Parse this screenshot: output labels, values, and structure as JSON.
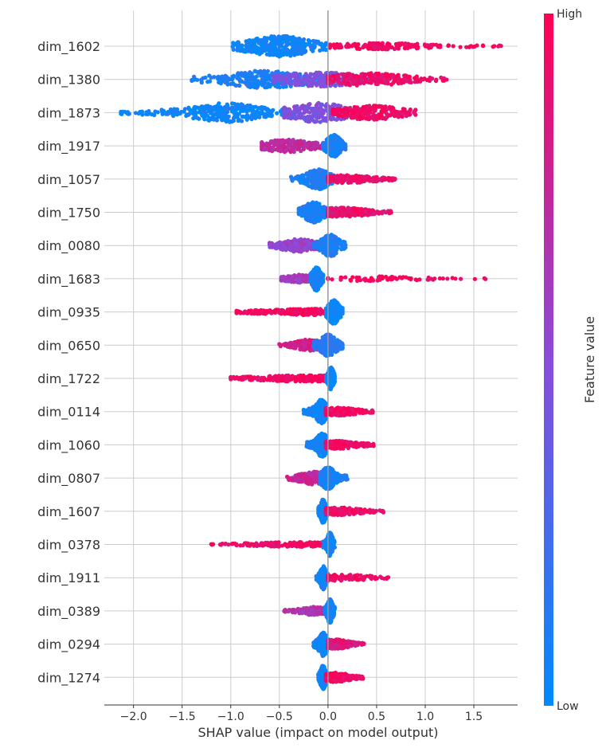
{
  "chart_data": {
    "type": "scatter",
    "subtype": "shap-beeswarm",
    "xlabel": "SHAP value (impact on model output)",
    "xlim": [
      -2.3,
      1.95
    ],
    "xticks": [
      -2.0,
      -1.5,
      -1.0,
      -0.5,
      0.0,
      0.5,
      1.0,
      1.5
    ],
    "xtick_labels": [
      "−2.0",
      "−1.5",
      "−1.0",
      "−0.5",
      "0.0",
      "0.5",
      "1.0",
      "1.5"
    ],
    "grid": true,
    "zero_line": true,
    "color_low": "#008bfb",
    "color_mid": "#8a4cdb",
    "color_high": "#ff0052",
    "colorbar": {
      "title": "Feature value",
      "high_label": "High",
      "low_label": "Low"
    },
    "features": [
      {
        "name": "dim_1602",
        "segments": [
          {
            "min": -0.98,
            "max": -0.02,
            "peak": -0.5,
            "width": 0.22,
            "color": 0.05,
            "n": 380,
            "spread": 13
          },
          {
            "min": 0.02,
            "max": 1.78,
            "peak": 0.55,
            "width": 0.35,
            "color": 0.95,
            "n": 190,
            "spread": 4
          }
        ]
      },
      {
        "name": "dim_1380",
        "segments": [
          {
            "min": -1.4,
            "max": -0.05,
            "peak": -0.65,
            "width": 0.3,
            "color": 0.1,
            "n": 320,
            "spread": 11
          },
          {
            "min": -0.55,
            "max": 0.5,
            "peak": -0.1,
            "width": 0.3,
            "color": 0.45,
            "n": 240,
            "spread": 9
          },
          {
            "min": 0.0,
            "max": 1.22,
            "peak": 0.4,
            "width": 0.3,
            "color": 0.92,
            "n": 220,
            "spread": 8
          }
        ]
      },
      {
        "name": "dim_1873",
        "segments": [
          {
            "min": -2.13,
            "max": -0.35,
            "peak": -1.05,
            "width": 0.25,
            "color": 0.05,
            "n": 340,
            "spread": 12
          },
          {
            "min": -0.45,
            "max": 0.35,
            "peak": -0.1,
            "width": 0.22,
            "color": 0.45,
            "n": 240,
            "spread": 12
          },
          {
            "min": 0.05,
            "max": 0.9,
            "peak": 0.45,
            "width": 0.22,
            "color": 0.93,
            "n": 220,
            "spread": 9
          }
        ]
      },
      {
        "name": "dim_1917",
        "segments": [
          {
            "min": -0.68,
            "max": -0.05,
            "peak": -0.42,
            "width": 0.18,
            "color": 0.72,
            "n": 220,
            "spread": 8
          },
          {
            "min": -0.05,
            "max": 0.18,
            "peak": 0.06,
            "width": 0.05,
            "color": 0.08,
            "n": 210,
            "spread": 14
          }
        ]
      },
      {
        "name": "dim_1057",
        "segments": [
          {
            "min": -0.38,
            "max": 0.08,
            "peak": -0.1,
            "width": 0.08,
            "color": 0.1,
            "n": 260,
            "spread": 13
          },
          {
            "min": 0.0,
            "max": 0.69,
            "peak": 0.2,
            "width": 0.2,
            "color": 0.92,
            "n": 200,
            "spread": 5
          }
        ]
      },
      {
        "name": "dim_1750",
        "segments": [
          {
            "min": -0.3,
            "max": 0.05,
            "peak": -0.15,
            "width": 0.07,
            "color": 0.1,
            "n": 250,
            "spread": 13
          },
          {
            "min": 0.0,
            "max": 0.65,
            "peak": 0.15,
            "width": 0.18,
            "color": 0.9,
            "n": 210,
            "spread": 6
          }
        ]
      },
      {
        "name": "dim_0080",
        "segments": [
          {
            "min": -0.6,
            "max": -0.05,
            "peak": -0.3,
            "width": 0.15,
            "color": 0.55,
            "n": 220,
            "spread": 8
          },
          {
            "min": -0.15,
            "max": 0.18,
            "peak": 0.02,
            "width": 0.06,
            "color": 0.1,
            "n": 220,
            "spread": 14
          }
        ]
      },
      {
        "name": "dim_1683",
        "segments": [
          {
            "min": -0.48,
            "max": -0.1,
            "peak": -0.3,
            "width": 0.1,
            "color": 0.6,
            "n": 120,
            "spread": 5
          },
          {
            "min": -0.18,
            "max": -0.05,
            "peak": -0.12,
            "width": 0.03,
            "color": 0.05,
            "n": 260,
            "spread": 15
          },
          {
            "min": 0.0,
            "max": 1.62,
            "peak": 0.5,
            "width": 0.3,
            "color": 0.95,
            "n": 70,
            "spread": 3
          }
        ]
      },
      {
        "name": "dim_0935",
        "segments": [
          {
            "min": -0.94,
            "max": -0.02,
            "peak": -0.2,
            "width": 0.35,
            "color": 0.95,
            "n": 260,
            "spread": 4
          },
          {
            "min": -0.02,
            "max": 0.15,
            "peak": 0.06,
            "width": 0.04,
            "color": 0.05,
            "n": 240,
            "spread": 15
          }
        ]
      },
      {
        "name": "dim_0650",
        "segments": [
          {
            "min": -0.5,
            "max": -0.05,
            "peak": -0.2,
            "width": 0.1,
            "color": 0.8,
            "n": 200,
            "spread": 7
          },
          {
            "min": -0.15,
            "max": 0.15,
            "peak": 0.0,
            "width": 0.06,
            "color": 0.15,
            "n": 230,
            "spread": 14
          }
        ]
      },
      {
        "name": "dim_1722",
        "segments": [
          {
            "min": -1.0,
            "max": -0.02,
            "peak": -0.2,
            "width": 0.4,
            "color": 0.95,
            "n": 260,
            "spread": 4
          },
          {
            "min": -0.02,
            "max": 0.07,
            "peak": 0.03,
            "width": 0.02,
            "color": 0.05,
            "n": 240,
            "spread": 14
          }
        ]
      },
      {
        "name": "dim_0114",
        "segments": [
          {
            "min": -0.25,
            "max": -0.02,
            "peak": -0.07,
            "width": 0.04,
            "color": 0.05,
            "n": 260,
            "spread": 15
          },
          {
            "min": -0.02,
            "max": 0.46,
            "peak": 0.1,
            "width": 0.15,
            "color": 0.93,
            "n": 220,
            "spread": 5
          }
        ]
      },
      {
        "name": "dim_1060",
        "segments": [
          {
            "min": -0.22,
            "max": -0.02,
            "peak": -0.06,
            "width": 0.04,
            "color": 0.05,
            "n": 250,
            "spread": 15
          },
          {
            "min": -0.02,
            "max": 0.47,
            "peak": 0.1,
            "width": 0.14,
            "color": 0.93,
            "n": 220,
            "spread": 5
          }
        ]
      },
      {
        "name": "dim_0807",
        "segments": [
          {
            "min": -0.42,
            "max": -0.02,
            "peak": -0.15,
            "width": 0.1,
            "color": 0.75,
            "n": 200,
            "spread": 8
          },
          {
            "min": -0.08,
            "max": 0.2,
            "peak": 0.0,
            "width": 0.05,
            "color": 0.1,
            "n": 230,
            "spread": 14
          }
        ]
      },
      {
        "name": "dim_1607",
        "segments": [
          {
            "min": -0.1,
            "max": 0.0,
            "peak": -0.05,
            "width": 0.02,
            "color": 0.05,
            "n": 260,
            "spread": 15
          },
          {
            "min": -0.02,
            "max": 0.57,
            "peak": 0.1,
            "width": 0.15,
            "color": 0.92,
            "n": 200,
            "spread": 5
          }
        ]
      },
      {
        "name": "dim_0378",
        "segments": [
          {
            "min": -1.2,
            "max": -0.05,
            "peak": -0.3,
            "width": 0.35,
            "color": 0.93,
            "n": 180,
            "spread": 3
          },
          {
            "min": -0.05,
            "max": 0.07,
            "peak": 0.02,
            "width": 0.02,
            "color": 0.05,
            "n": 240,
            "spread": 15
          }
        ]
      },
      {
        "name": "dim_1911",
        "segments": [
          {
            "min": -0.12,
            "max": 0.0,
            "peak": -0.05,
            "width": 0.02,
            "color": 0.05,
            "n": 260,
            "spread": 15
          },
          {
            "min": 0.0,
            "max": 0.62,
            "peak": 0.15,
            "width": 0.2,
            "color": 0.93,
            "n": 90,
            "spread": 4
          }
        ]
      },
      {
        "name": "dim_0389",
        "segments": [
          {
            "min": -0.45,
            "max": -0.05,
            "peak": -0.15,
            "width": 0.1,
            "color": 0.65,
            "n": 160,
            "spread": 5
          },
          {
            "min": -0.03,
            "max": 0.07,
            "peak": 0.02,
            "width": 0.02,
            "color": 0.05,
            "n": 240,
            "spread": 15
          }
        ]
      },
      {
        "name": "dim_0294",
        "segments": [
          {
            "min": -0.15,
            "max": 0.0,
            "peak": -0.05,
            "width": 0.03,
            "color": 0.05,
            "n": 250,
            "spread": 15
          },
          {
            "min": 0.0,
            "max": 0.37,
            "peak": 0.08,
            "width": 0.1,
            "color": 0.85,
            "n": 200,
            "spread": 6
          }
        ]
      },
      {
        "name": "dim_1274",
        "segments": [
          {
            "min": -0.1,
            "max": 0.0,
            "peak": -0.05,
            "width": 0.02,
            "color": 0.05,
            "n": 250,
            "spread": 15
          },
          {
            "min": -0.02,
            "max": 0.36,
            "peak": 0.08,
            "width": 0.1,
            "color": 0.93,
            "n": 200,
            "spread": 6
          }
        ]
      }
    ]
  }
}
